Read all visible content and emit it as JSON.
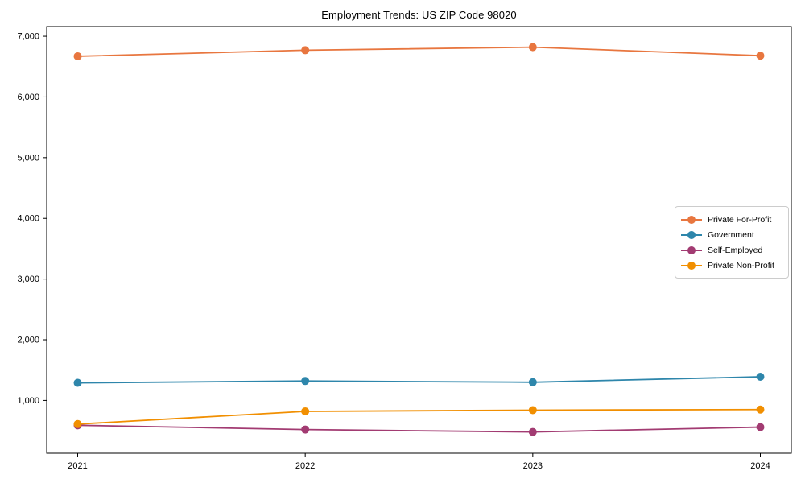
{
  "chart_data": {
    "type": "line",
    "title": "Employment Trends: US ZIP Code 98020",
    "categories": [
      "2021",
      "2022",
      "2023",
      "2024"
    ],
    "series": [
      {
        "name": "Private For-Profit",
        "color": "#E8763F",
        "values": [
          6670,
          6770,
          6820,
          6680
        ]
      },
      {
        "name": "Government",
        "color": "#2E86AB",
        "values": [
          1290,
          1320,
          1300,
          1390
        ]
      },
      {
        "name": "Self-Employed",
        "color": "#A23B72",
        "values": [
          590,
          520,
          480,
          560
        ]
      },
      {
        "name": "Private Non-Profit",
        "color": "#F18F01",
        "values": [
          610,
          820,
          840,
          850
        ]
      }
    ],
    "yticks": [
      1000,
      2000,
      3000,
      4000,
      5000,
      6000,
      7000
    ],
    "ytick_labels": [
      "1,000",
      "2,000",
      "3,000",
      "4,000",
      "5,000",
      "6,000",
      "7,000"
    ],
    "ylim": [
      130,
      7160
    ],
    "xlabel": "",
    "ylabel": "",
    "grid": false,
    "legend_position": "center right",
    "axis_color": "#000000",
    "tick_label_color": "#000000"
  }
}
